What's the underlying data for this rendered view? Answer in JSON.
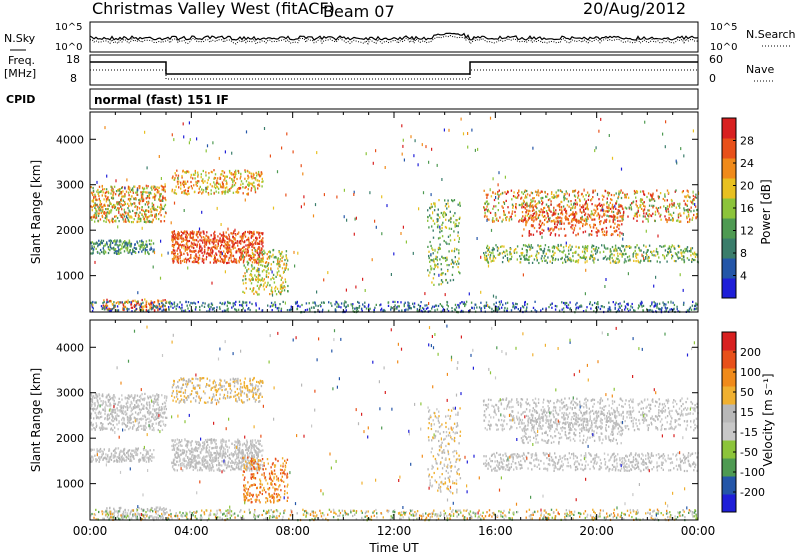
{
  "header": {
    "title": "Christmas Valley West (fitACF)",
    "beam": "Beam 07",
    "date": "20/Aug/2012"
  },
  "noise_panel": {
    "left_label": "N.Sky",
    "right_label": "N.Search",
    "left_ticks": [
      "10^5",
      "10^0"
    ],
    "right_ticks": [
      "10^5",
      "10^0"
    ]
  },
  "freq_panel": {
    "left_label_1": "Freq.",
    "left_label_2": "[MHz]",
    "left_ticks": [
      "18",
      "8"
    ],
    "right_label": "Nave",
    "right_ticks": [
      "60",
      "0"
    ]
  },
  "cpid": {
    "label": "CPID",
    "value": "normal (fast) 151 IF"
  },
  "colors": {
    "power": [
      "#1f1fd8",
      "#2456a8",
      "#3a7d6b",
      "#4e9a52",
      "#8cc43a",
      "#e8c020",
      "#f08a1a",
      "#e8501a",
      "#d82020"
    ],
    "velocity": [
      "#d82020",
      "#e8501a",
      "#f08a1a",
      "#f0b030",
      "#b8b8b8",
      "#c8c8c8",
      "#8cc43a",
      "#4e9a52",
      "#2456a8",
      "#1f1fd8"
    ]
  },
  "chart_data": [
    {
      "type": "heatmap",
      "name": "power",
      "ylabel": "Slant Range [km]",
      "xlabel": "",
      "yticks": [
        "1000",
        "2000",
        "3000",
        "4000"
      ],
      "colorbar_label": "Power [dB]",
      "colorbar_ticks": [
        "4",
        "8",
        "12",
        "16",
        "20",
        "24",
        "28"
      ],
      "ylim": [
        200,
        4600
      ],
      "xlim_hours": [
        0,
        24
      ]
    },
    {
      "type": "heatmap",
      "name": "velocity",
      "ylabel": "Slant Range [km]",
      "xlabel": "Time UT",
      "yticks": [
        "1000",
        "2000",
        "3000",
        "4000"
      ],
      "xticks": [
        "00:00",
        "04:00",
        "08:00",
        "12:00",
        "16:00",
        "20:00",
        "00:00"
      ],
      "colorbar_label": "Velocity [m s⁻¹]",
      "colorbar_ticks": [
        "200",
        "100",
        "50",
        "15",
        "-15",
        "-50",
        "-100",
        "-200"
      ],
      "ylim": [
        200,
        4600
      ],
      "xlim_hours": [
        0,
        24
      ]
    }
  ]
}
